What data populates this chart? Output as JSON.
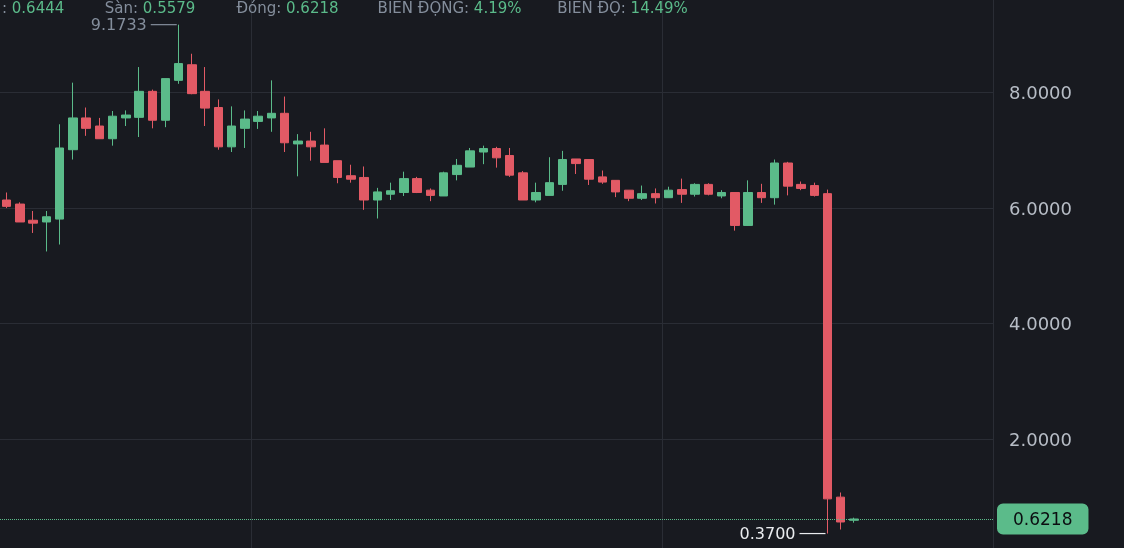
{
  "chart_data": {
    "type": "candlestick",
    "categories": [
      null,
      null,
      null,
      null,
      null,
      null,
      null,
      null,
      null,
      null,
      null,
      null,
      null,
      null,
      null,
      null,
      null,
      null,
      null,
      null,
      null,
      null,
      null,
      null,
      null,
      null,
      null,
      null,
      null,
      null,
      null,
      null,
      null,
      null,
      null,
      null,
      null,
      null,
      null,
      null,
      null,
      null,
      null,
      null,
      null,
      null,
      null,
      null,
      null,
      null,
      null,
      null,
      null,
      null,
      null,
      null,
      null,
      null,
      null,
      null,
      null,
      null,
      null,
      null,
      null,
      null,
      null,
      null,
      null,
      null,
      null,
      null,
      null,
      null,
      null
    ],
    "ohlc": [
      [
        6.14,
        6.27,
        6.0,
        6.03
      ],
      [
        6.07,
        6.1,
        5.76,
        5.76
      ],
      [
        5.79,
        5.95,
        5.57,
        5.74
      ],
      [
        5.76,
        5.95,
        5.25,
        5.85
      ],
      [
        5.81,
        7.45,
        5.37,
        7.04
      ],
      [
        7.01,
        8.17,
        6.84,
        7.56
      ],
      [
        7.56,
        7.74,
        7.25,
        7.38
      ],
      [
        7.42,
        7.56,
        7.2,
        7.2
      ],
      [
        7.2,
        7.68,
        7.08,
        7.59
      ],
      [
        7.56,
        7.69,
        7.42,
        7.61
      ],
      [
        7.57,
        8.44,
        7.23,
        8.02
      ],
      [
        8.02,
        8.05,
        7.38,
        7.52
      ],
      [
        7.52,
        8.24,
        7.4,
        8.24
      ],
      [
        8.21,
        9.1733,
        8.15,
        8.5
      ],
      [
        8.48,
        8.67,
        7.97,
        7.98
      ],
      [
        8.02,
        8.44,
        7.42,
        7.73
      ],
      [
        7.74,
        7.88,
        7.01,
        7.06
      ],
      [
        7.06,
        7.76,
        6.97,
        7.42
      ],
      [
        7.38,
        7.69,
        7.04,
        7.54
      ],
      [
        7.5,
        7.68,
        7.37,
        7.59
      ],
      [
        7.56,
        8.21,
        7.32,
        7.64
      ],
      [
        7.64,
        7.93,
        6.97,
        7.13
      ],
      [
        7.11,
        7.28,
        6.55,
        7.16
      ],
      [
        7.16,
        7.32,
        6.82,
        7.06
      ],
      [
        7.09,
        7.38,
        6.79,
        6.79
      ],
      [
        6.82,
        6.82,
        6.43,
        6.53
      ],
      [
        6.56,
        6.75,
        6.44,
        6.5
      ],
      [
        6.53,
        6.72,
        5.97,
        6.14
      ],
      [
        6.14,
        6.35,
        5.82,
        6.28
      ],
      [
        6.24,
        6.44,
        6.14,
        6.3
      ],
      [
        6.27,
        6.63,
        6.21,
        6.51
      ],
      [
        6.51,
        6.54,
        6.26,
        6.27
      ],
      [
        6.31,
        6.34,
        6.12,
        6.22
      ],
      [
        6.21,
        6.63,
        6.21,
        6.61
      ],
      [
        6.58,
        6.85,
        6.48,
        6.74
      ],
      [
        6.71,
        7.04,
        6.71,
        6.99
      ],
      [
        6.97,
        7.08,
        6.76,
        7.03
      ],
      [
        7.03,
        7.06,
        6.7,
        6.87
      ],
      [
        6.91,
        7.04,
        6.54,
        6.57
      ],
      [
        6.61,
        6.64,
        6.14,
        6.14
      ],
      [
        6.14,
        6.44,
        6.1,
        6.27
      ],
      [
        6.22,
        6.88,
        6.22,
        6.44
      ],
      [
        6.41,
        6.99,
        6.3,
        6.84
      ],
      [
        6.85,
        6.85,
        6.59,
        6.77
      ],
      [
        6.84,
        6.84,
        6.4,
        6.5
      ],
      [
        6.54,
        6.65,
        6.42,
        6.45
      ],
      [
        6.48,
        6.48,
        6.19,
        6.28
      ],
      [
        6.31,
        6.31,
        6.12,
        6.17
      ],
      [
        6.17,
        6.39,
        6.14,
        6.25
      ],
      [
        6.25,
        6.34,
        6.08,
        6.18
      ],
      [
        6.18,
        6.37,
        6.18,
        6.31
      ],
      [
        6.32,
        6.51,
        6.09,
        6.24
      ],
      [
        6.24,
        6.43,
        6.2,
        6.41
      ],
      [
        6.41,
        6.43,
        6.22,
        6.24
      ],
      [
        6.21,
        6.31,
        6.17,
        6.27
      ],
      [
        6.27,
        6.27,
        5.61,
        5.7
      ],
      [
        5.7,
        6.48,
        5.69,
        6.27
      ],
      [
        6.27,
        6.42,
        6.09,
        6.18
      ],
      [
        6.18,
        6.84,
        6.06,
        6.78
      ],
      [
        6.78,
        6.8,
        6.22,
        6.38
      ],
      [
        6.41,
        6.46,
        6.31,
        6.34
      ],
      [
        6.39,
        6.44,
        6.2,
        6.22
      ],
      [
        6.25,
        6.32,
        0.37,
        0.97
      ],
      [
        1.0,
        1.08,
        0.44,
        0.57
      ],
      [
        0.6,
        0.6444,
        0.5579,
        0.6218
      ],
      null,
      null,
      null,
      null,
      null,
      null,
      null,
      null,
      null,
      null
    ],
    "colors": [
      "#e25a65",
      "#e25a65",
      "#e25a65",
      "#5bbb8a",
      "#5bbb8a",
      "#5bbb8a",
      "#e25a65",
      "#e25a65",
      "#5bbb8a",
      "#5bbb8a",
      "#5bbb8a",
      "#e25a65",
      "#5bbb8a",
      "#5bbb8a",
      "#e25a65",
      "#e25a65",
      "#e25a65",
      "#5bbb8a",
      "#5bbb8a",
      "#5bbb8a",
      "#5bbb8a",
      "#e25a65",
      "#5bbb8a",
      "#e25a65",
      "#e25a65",
      "#e25a65",
      "#e25a65",
      "#e25a65",
      "#5bbb8a",
      "#5bbb8a",
      "#5bbb8a",
      "#e25a65",
      "#e25a65",
      "#5bbb8a",
      "#5bbb8a",
      "#5bbb8a",
      "#5bbb8a",
      "#e25a65",
      "#e25a65",
      "#e25a65",
      "#5bbb8a",
      "#5bbb8a",
      "#5bbb8a",
      "#e25a65",
      "#e25a65",
      "#e25a65",
      "#e25a65",
      "#e25a65",
      "#5bbb8a",
      "#e25a65",
      "#5bbb8a",
      "#e25a65",
      "#5bbb8a",
      "#e25a65",
      "#5bbb8a",
      "#e25a65",
      "#5bbb8a",
      "#e25a65",
      "#5bbb8a",
      "#e25a65",
      "#e25a65",
      "#e25a65",
      "#e25a65",
      "#e25a65",
      "#5bbb8a",
      null,
      null,
      null,
      null,
      null,
      null,
      null,
      null,
      null,
      null
    ],
    "ylim": [
      0.12,
      9.6
    ],
    "yticks": [
      {
        "value": 2,
        "label": "2.0000"
      },
      {
        "value": 4,
        "label": "4.0000"
      },
      {
        "value": 6,
        "label": "6.0000"
      },
      {
        "value": 8,
        "label": "8.0000"
      }
    ],
    "grid": true,
    "ref_lines": [
      {
        "axis": "y",
        "value": 0.6218,
        "label": "0.6218",
        "color": "#5bbb8a"
      }
    ],
    "annotations": [
      ": 0.6444",
      "Sàn: 0.5579",
      "Đóng: 0.6218",
      "BIÊN ĐỘNG: 4.19%",
      "BIÊN ĐỘ: 14.49%",
      "9.1733",
      "0.3700"
    ]
  }
}
